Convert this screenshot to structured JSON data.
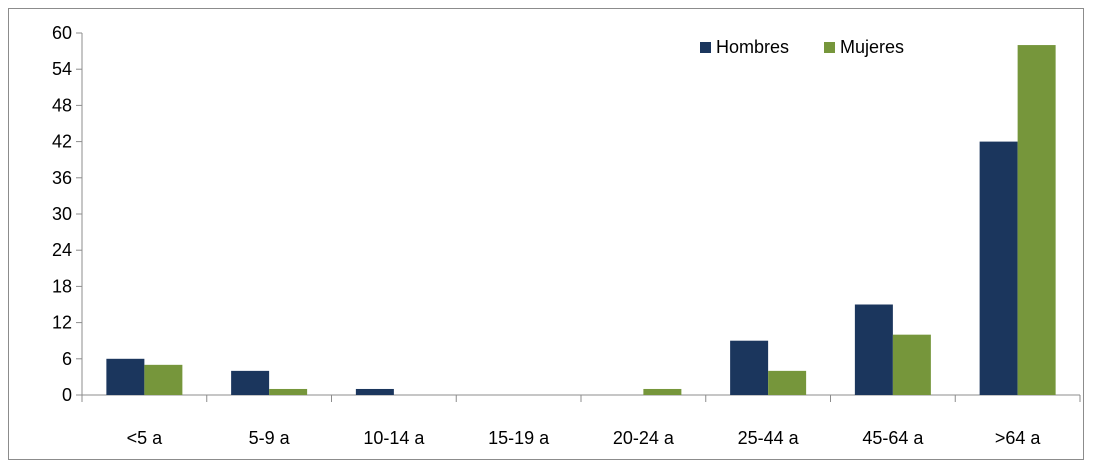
{
  "chart_data": {
    "type": "bar",
    "categories": [
      "<5 a",
      "5-9 a",
      "10-14 a",
      "15-19 a",
      "20-24 a",
      "25-44 a",
      "45-64 a",
      ">64 a"
    ],
    "series": [
      {
        "name": "Hombres",
        "color": "#1b365d",
        "values": [
          6,
          4,
          1,
          0,
          0,
          9,
          15,
          42
        ]
      },
      {
        "name": "Mujeres",
        "color": "#76963b",
        "values": [
          5,
          1,
          0,
          0,
          1,
          4,
          10,
          58
        ]
      }
    ],
    "yticks": [
      0,
      6,
      12,
      18,
      24,
      30,
      36,
      42,
      48,
      54,
      60
    ],
    "ylim": [
      0,
      60
    ],
    "grid": false,
    "legend_position": "top-right",
    "title": "",
    "xlabel": "",
    "ylabel": ""
  }
}
